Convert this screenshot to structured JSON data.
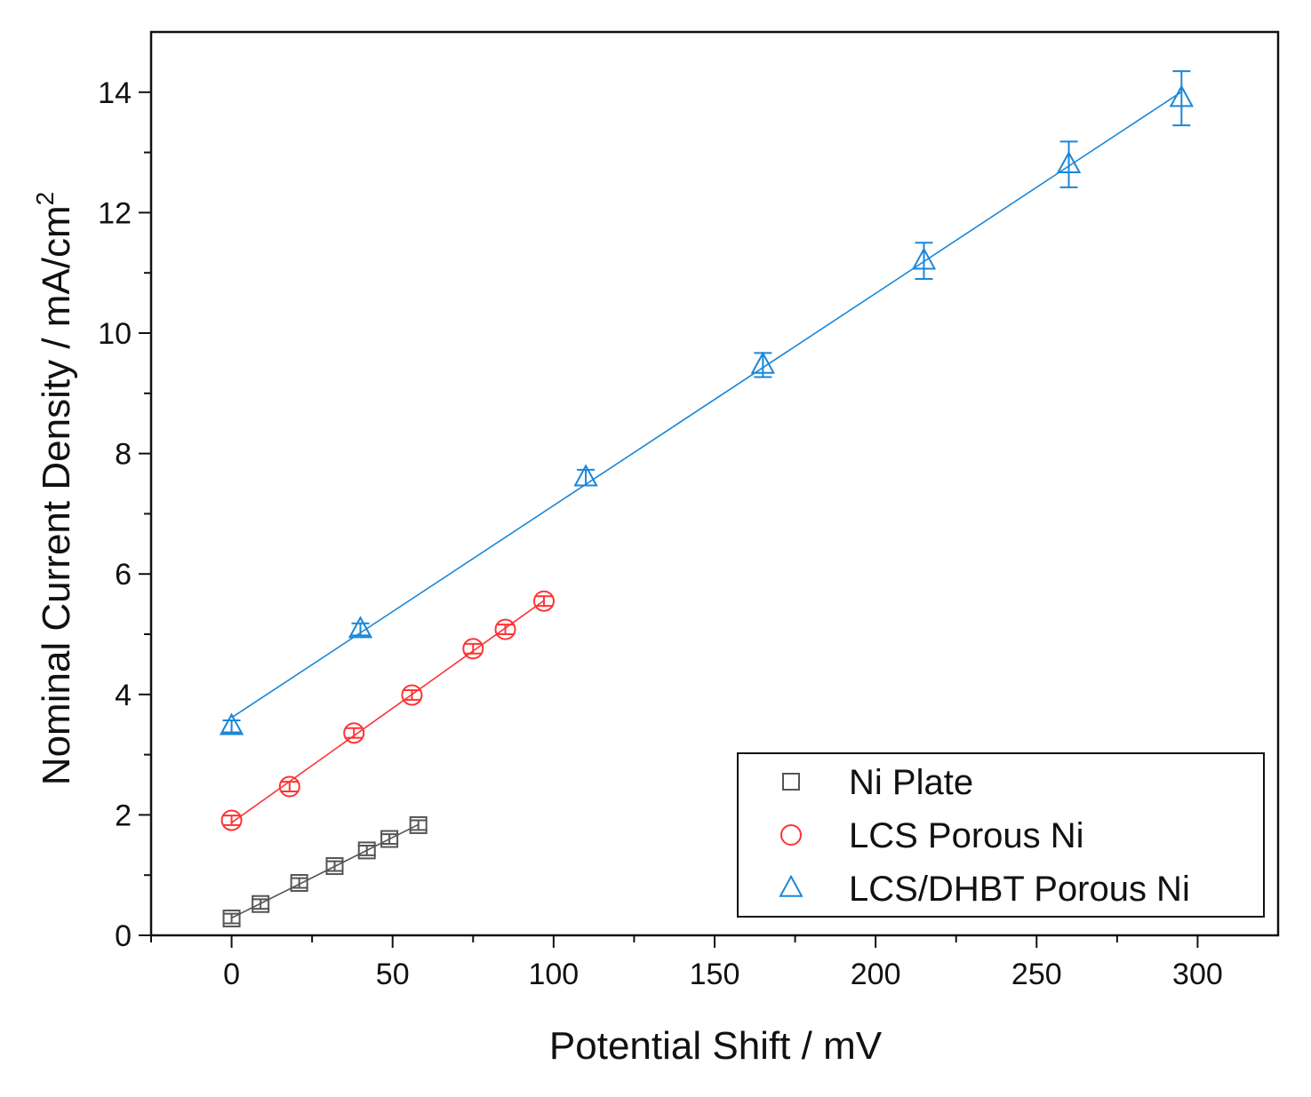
{
  "chart_data": {
    "type": "scatter",
    "title": "",
    "xlabel": "Potential Shift / mV",
    "ylabel": "Nominal Current Density / mA/cm",
    "ylabel_superscript": "2",
    "xlim": [
      -25,
      325
    ],
    "ylim": [
      0,
      15
    ],
    "xticks": [
      0,
      50,
      100,
      150,
      200,
      250,
      300
    ],
    "yticks": [
      0,
      2,
      4,
      6,
      8,
      10,
      12,
      14
    ],
    "grid": false,
    "legend_position": "bottom-right",
    "series": [
      {
        "name": "Ni Plate",
        "marker": "square",
        "color": "#555555",
        "fit_line": true,
        "x": [
          0,
          9,
          21,
          32,
          42,
          49,
          58
        ],
        "y": [
          0.28,
          0.52,
          0.87,
          1.15,
          1.41,
          1.6,
          1.83
        ],
        "err": [
          0.08,
          0.08,
          0.08,
          0.08,
          0.08,
          0.08,
          0.08
        ]
      },
      {
        "name": "LCS Porous Ni",
        "marker": "circle",
        "color": "#ff3333",
        "fit_line": true,
        "x": [
          0,
          18,
          38,
          56,
          75,
          85,
          97
        ],
        "y": [
          1.91,
          2.47,
          3.36,
          3.99,
          4.76,
          5.08,
          5.55
        ],
        "err": [
          0.08,
          0.08,
          0.08,
          0.08,
          0.08,
          0.08,
          0.08
        ]
      },
      {
        "name": "LCS/DHBT Porous Ni",
        "marker": "triangle",
        "color": "#1a86d8",
        "fit_line": true,
        "x": [
          0,
          40,
          110,
          165,
          215,
          260,
          295
        ],
        "y": [
          3.47,
          5.08,
          7.6,
          9.47,
          11.2,
          12.8,
          13.9
        ],
        "err": [
          0.1,
          0.1,
          0.13,
          0.2,
          0.3,
          0.38,
          0.45
        ]
      }
    ]
  }
}
